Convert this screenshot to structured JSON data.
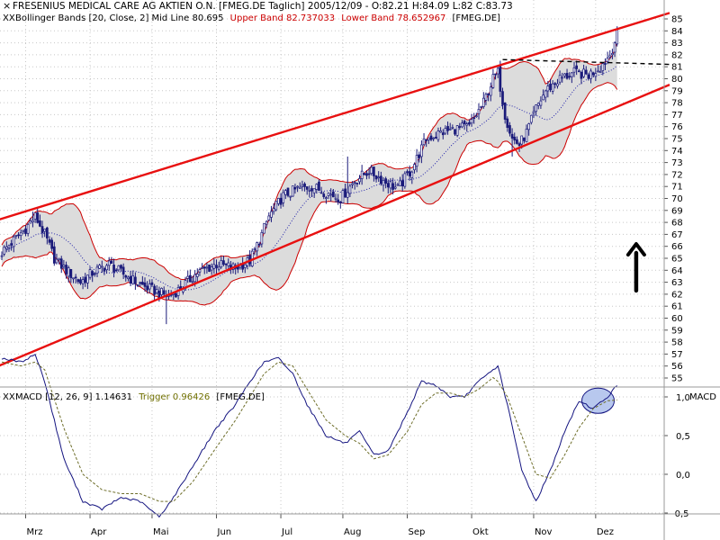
{
  "header": {
    "marker": "×",
    "title": "FRESENIUS MEDICAL CARE AG AKTIEN O.N. [FMEG.DE  Taglich] 2005/12/09 - O:82.21 H:84.09 L:82 C:83.73",
    "bb_marker": "XX",
    "bb_prefix": "Bollinger Bands [20, Close, 2] Mid Line 80.695",
    "bb_upper": "Upper Band 82.737033",
    "bb_lower": "Lower Band 78.652967",
    "bb_suffix": "[FMEG.DE]"
  },
  "macd_header": {
    "marker": "XX",
    "prefix": "MACD [12, 26, 9] 1.14631",
    "trigger": "Trigger 0.96426",
    "suffix": "[FMEG.DE]",
    "axis_title": "MACD"
  },
  "colors": {
    "background": "#ffffff",
    "grid": "#c8c8c8",
    "band_fill": "#dcdcdc",
    "band_line": "#cc0000",
    "trend_line": "#e81010",
    "candle": "#1a1a7a",
    "mid_line": "#2222aa",
    "macd": "#141480",
    "trigger": "#6e6e2a",
    "highlight": "#b8c8ee",
    "trigger_label": "#707000",
    "band_label": "#cc0000"
  },
  "chart_data": [
    {
      "type": "candlestick",
      "title": "FRESENIUS MEDICAL CARE AG AKTIEN O.N.",
      "ylim": [
        54.5,
        85.5
      ],
      "y_ticks": [
        55,
        56,
        57,
        58,
        59,
        60,
        61,
        62,
        63,
        64,
        65,
        66,
        67,
        68,
        69,
        70,
        71,
        72,
        73,
        74,
        75,
        76,
        77,
        78,
        79,
        80,
        81,
        82,
        83,
        84,
        85
      ],
      "x_labels": [
        "Mrz",
        "Apr",
        "Mai",
        "Jun",
        "Jul",
        "Aug",
        "Sep",
        "Okt",
        "Nov",
        "Dez"
      ],
      "price_keypoints": [
        [
          0,
          65.5
        ],
        [
          5,
          66.5
        ],
        [
          10,
          67.5
        ],
        [
          14,
          68.5
        ],
        [
          18,
          67
        ],
        [
          22,
          65
        ],
        [
          27,
          64
        ],
        [
          33,
          63
        ],
        [
          38,
          63.8
        ],
        [
          45,
          64.5
        ],
        [
          50,
          63.8
        ],
        [
          58,
          62.8
        ],
        [
          64,
          62.3
        ],
        [
          70,
          61.8
        ],
        [
          75,
          62.5
        ],
        [
          82,
          63.8
        ],
        [
          90,
          64.5
        ],
        [
          98,
          64.2
        ],
        [
          104,
          64.8
        ],
        [
          108,
          66.5
        ],
        [
          112,
          68.5
        ],
        [
          118,
          70.2
        ],
        [
          124,
          70.8
        ],
        [
          130,
          71
        ],
        [
          136,
          70.5
        ],
        [
          142,
          70
        ],
        [
          148,
          71.5
        ],
        [
          154,
          72.3
        ],
        [
          160,
          71.5
        ],
        [
          166,
          70.8
        ],
        [
          172,
          72.5
        ],
        [
          178,
          75
        ],
        [
          184,
          75.5
        ],
        [
          190,
          75.8
        ],
        [
          196,
          76
        ],
        [
          202,
          78
        ],
        [
          206,
          80
        ],
        [
          208,
          80.5
        ],
        [
          211,
          77
        ],
        [
          214,
          75
        ],
        [
          217,
          74.5
        ],
        [
          220,
          75.5
        ],
        [
          224,
          77.5
        ],
        [
          228,
          79
        ],
        [
          234,
          80
        ],
        [
          240,
          80.5
        ],
        [
          246,
          80.3
        ],
        [
          251,
          81
        ],
        [
          255,
          82
        ],
        [
          258,
          83.7
        ]
      ],
      "intraday_spikes": [
        [
          13,
          68.9,
          null
        ],
        [
          69,
          null,
          59.5
        ],
        [
          145,
          73.5,
          null
        ],
        [
          208,
          81,
          null
        ],
        [
          214,
          null,
          73.5
        ]
      ],
      "annotations": {
        "upper_trend_line": [
          [
            -5,
            68
          ],
          [
            280,
            85.5
          ]
        ],
        "lower_trend_line": [
          [
            -5,
            55.7
          ],
          [
            280,
            79.5
          ]
        ],
        "resistance_line": {
          "from": [
            210,
            81.6
          ],
          "to": [
            280,
            81.2
          ],
          "style": "dashed"
        },
        "up_arrow": {
          "x": 266,
          "from": 62.3,
          "to": 66.2
        }
      },
      "legend": [
        {
          "name": "Mid Line",
          "value": 80.695
        },
        {
          "name": "Upper Band",
          "value": 82.737033
        },
        {
          "name": "Lower Band",
          "value": 78.652967
        }
      ]
    },
    {
      "type": "line",
      "title": "MACD [12, 26, 9]",
      "ylim": [
        -0.7,
        1.6
      ],
      "y_ticks": [
        {
          "value": 1.0,
          "label": "1,0"
        },
        {
          "value": 0.5,
          "label": "0,5"
        },
        {
          "value": 0.0,
          "label": "0,0"
        },
        {
          "value": -0.5,
          "label": "-0,5"
        }
      ],
      "series": [
        {
          "name": "MACD",
          "value": 1.14631,
          "keypoints": [
            [
              0,
              1.5
            ],
            [
              8,
              1.45
            ],
            [
              14,
              1.55
            ],
            [
              18,
              1.2
            ],
            [
              26,
              0.2
            ],
            [
              34,
              -0.35
            ],
            [
              42,
              -0.45
            ],
            [
              50,
              -0.3
            ],
            [
              58,
              -0.35
            ],
            [
              66,
              -0.55
            ],
            [
              72,
              -0.3
            ],
            [
              80,
              0.1
            ],
            [
              90,
              0.6
            ],
            [
              98,
              0.9
            ],
            [
              104,
              1.2
            ],
            [
              110,
              1.45
            ],
            [
              116,
              1.5
            ],
            [
              122,
              1.3
            ],
            [
              128,
              0.9
            ],
            [
              136,
              0.5
            ],
            [
              144,
              0.4
            ],
            [
              150,
              0.55
            ],
            [
              156,
              0.25
            ],
            [
              162,
              0.3
            ],
            [
              170,
              0.8
            ],
            [
              176,
              1.2
            ],
            [
              182,
              1.15
            ],
            [
              188,
              1.0
            ],
            [
              194,
              1.0
            ],
            [
              200,
              1.2
            ],
            [
              206,
              1.35
            ],
            [
              208,
              1.4
            ],
            [
              212,
              0.9
            ],
            [
              218,
              0.05
            ],
            [
              224,
              -0.35
            ],
            [
              230,
              0.05
            ],
            [
              236,
              0.55
            ],
            [
              242,
              0.95
            ],
            [
              248,
              0.85
            ],
            [
              254,
              1.0
            ],
            [
              258,
              1.15
            ]
          ]
        },
        {
          "name": "Trigger",
          "value": 0.96426,
          "keypoints": [
            [
              0,
              1.45
            ],
            [
              8,
              1.4
            ],
            [
              14,
              1.45
            ],
            [
              18,
              1.35
            ],
            [
              26,
              0.6
            ],
            [
              34,
              0.0
            ],
            [
              42,
              -0.2
            ],
            [
              50,
              -0.25
            ],
            [
              58,
              -0.25
            ],
            [
              66,
              -0.35
            ],
            [
              72,
              -0.35
            ],
            [
              80,
              -0.1
            ],
            [
              90,
              0.35
            ],
            [
              98,
              0.7
            ],
            [
              104,
              1.0
            ],
            [
              110,
              1.3
            ],
            [
              116,
              1.45
            ],
            [
              122,
              1.4
            ],
            [
              128,
              1.1
            ],
            [
              136,
              0.7
            ],
            [
              144,
              0.5
            ],
            [
              150,
              0.4
            ],
            [
              156,
              0.2
            ],
            [
              162,
              0.25
            ],
            [
              170,
              0.55
            ],
            [
              176,
              0.9
            ],
            [
              182,
              1.05
            ],
            [
              188,
              1.05
            ],
            [
              194,
              1.0
            ],
            [
              200,
              1.1
            ],
            [
              206,
              1.25
            ],
            [
              208,
              1.2
            ],
            [
              212,
              1.0
            ],
            [
              218,
              0.5
            ],
            [
              224,
              0.0
            ],
            [
              230,
              -0.05
            ],
            [
              236,
              0.25
            ],
            [
              242,
              0.6
            ],
            [
              248,
              0.85
            ],
            [
              254,
              0.95
            ],
            [
              258,
              0.96
            ]
          ]
        }
      ],
      "annotations": {
        "highlight_ellipse_center": [
          250,
          0.95
        ]
      }
    }
  ]
}
